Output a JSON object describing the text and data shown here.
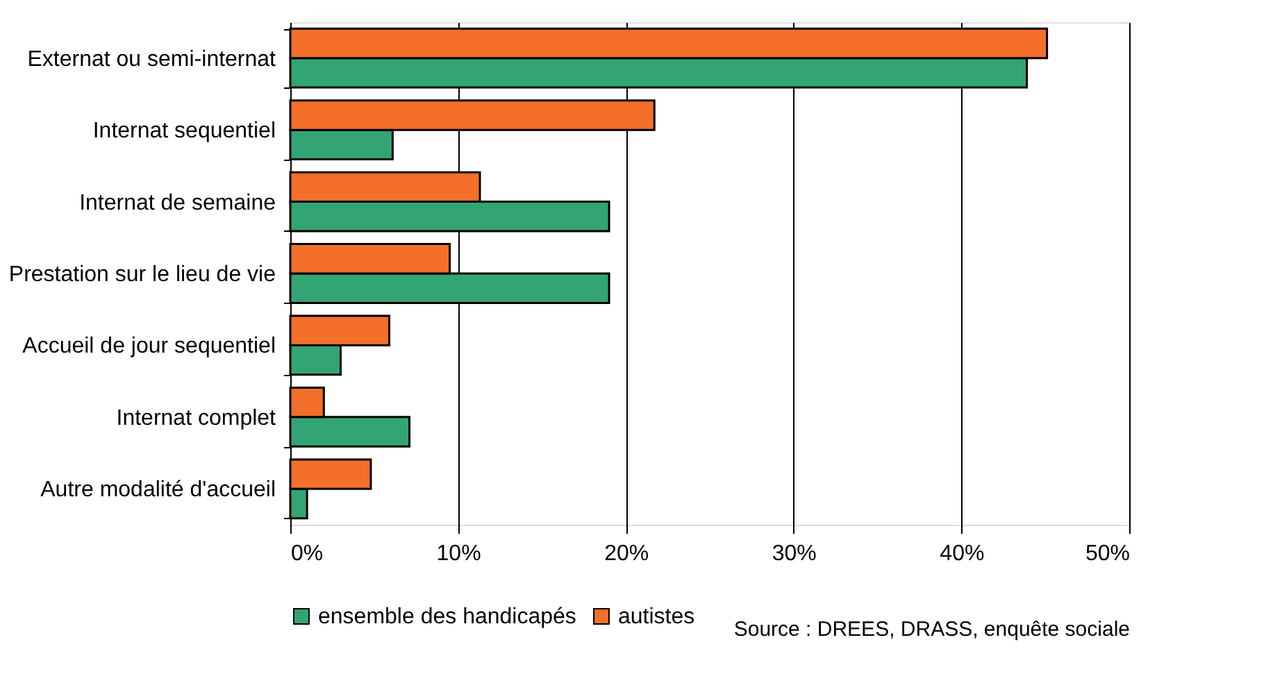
{
  "chart_data": {
    "type": "bar",
    "orientation": "horizontal",
    "categories": [
      "Externat ou semi-internat",
      "Internat sequentiel",
      "Internat de semaine",
      "Prestation sur le lieu de vie",
      "Accueil de jour sequentiel",
      "Internat complet",
      "Autre modalité d'accueil"
    ],
    "series": [
      {
        "name": "ensemble des handicapés",
        "color": "#33a474",
        "values": [
          43.9,
          6.1,
          19.0,
          19.0,
          3.0,
          7.1,
          1.0
        ]
      },
      {
        "name": "autistes",
        "color": "#f46f2a",
        "values": [
          45.1,
          21.7,
          11.3,
          9.5,
          5.9,
          2.0,
          4.8
        ]
      }
    ],
    "xlim": [
      0,
      50
    ],
    "xticks": [
      {
        "value": 0,
        "label": "0%"
      },
      {
        "value": 10,
        "label": "10%"
      },
      {
        "value": 20,
        "label": "20%"
      },
      {
        "value": 30,
        "label": "30%"
      },
      {
        "value": 40,
        "label": "40%"
      },
      {
        "value": 50,
        "label": "50%"
      }
    ],
    "grid": "x",
    "legend": "bottom left",
    "annotations": [
      "Source : DREES, DRASS, enquête sociale"
    ]
  }
}
